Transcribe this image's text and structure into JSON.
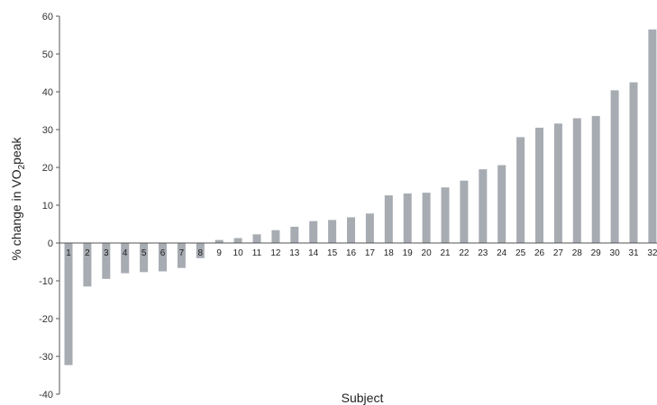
{
  "chart_data": {
    "type": "bar",
    "xlabel": "Subject",
    "ylabel_prefix": "% change in VO",
    "ylabel_subscript": "2",
    "ylabel_suffix": "peak",
    "ylim": [
      -40,
      60
    ],
    "yticks": [
      -40,
      -30,
      -20,
      -10,
      0,
      10,
      20,
      30,
      40,
      50,
      60
    ],
    "grid": false,
    "bar_color": "#a7abb2",
    "categories": [
      "1",
      "2",
      "3",
      "4",
      "5",
      "6",
      "7",
      "8",
      "9",
      "10",
      "11",
      "12",
      "13",
      "14",
      "15",
      "16",
      "17",
      "18",
      "19",
      "20",
      "21",
      "22",
      "23",
      "24",
      "25",
      "26",
      "27",
      "28",
      "29",
      "30",
      "31",
      "32"
    ],
    "values": [
      -32.3,
      -11.5,
      -9.5,
      -8,
      -7.7,
      -7.5,
      -6.6,
      -4,
      0.8,
      1.3,
      2.3,
      3.4,
      4.3,
      5.8,
      6.1,
      6.8,
      7.8,
      12.6,
      13.1,
      13.3,
      14.7,
      16.5,
      19.5,
      20.6,
      28,
      30.5,
      31.6,
      33,
      33.6,
      40.4,
      42.5,
      56.5
    ]
  }
}
